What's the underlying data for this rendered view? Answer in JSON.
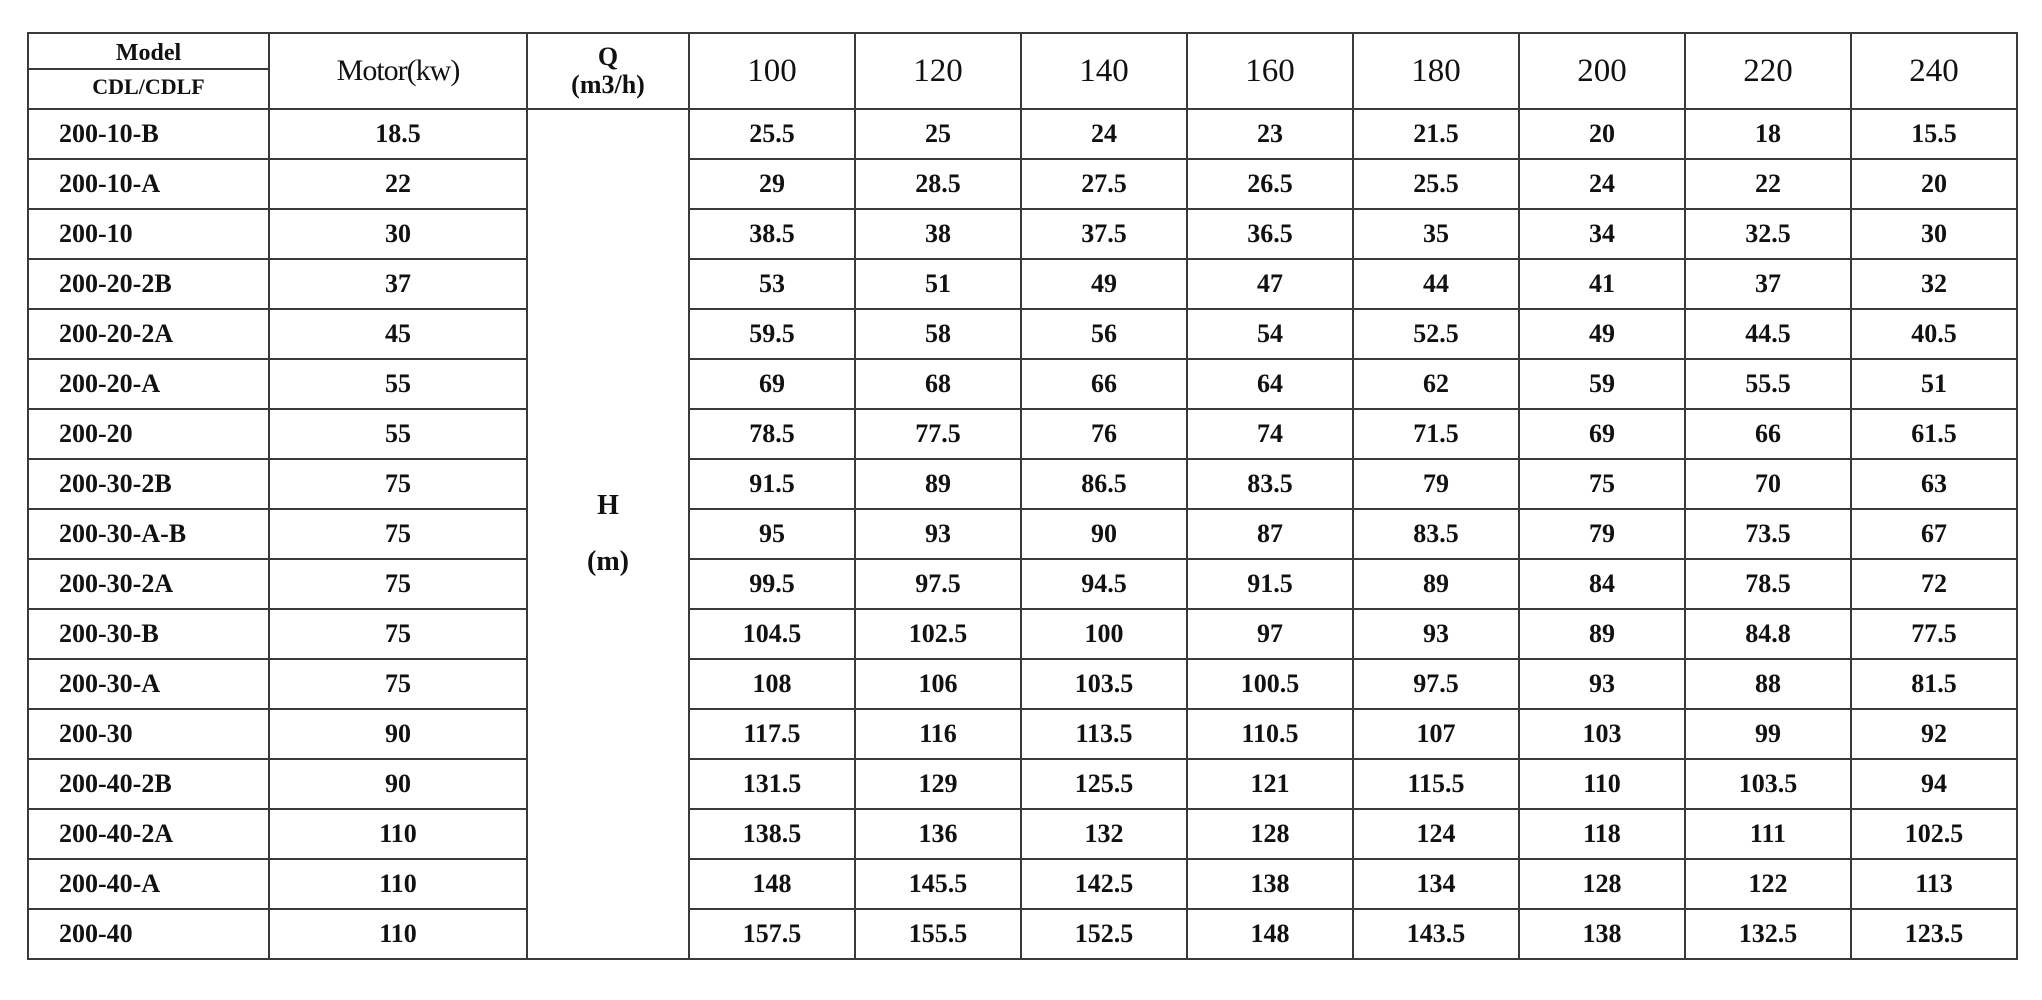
{
  "header": {
    "model_label": "Model",
    "model_sub_label": "CDL/CDLF",
    "motor_label": "Motor(kw)",
    "q_label": "Q",
    "q_unit": "(m3/h)",
    "h_label": "H",
    "h_unit": "(m)",
    "flows": [
      "100",
      "120",
      "140",
      "160",
      "180",
      "200",
      "220",
      "240"
    ]
  },
  "rows": [
    {
      "model": "200-10-B",
      "motor": "18.5",
      "h": [
        "25.5",
        "25",
        "24",
        "23",
        "21.5",
        "20",
        "18",
        "15.5"
      ]
    },
    {
      "model": "200-10-A",
      "motor": "22",
      "h": [
        "29",
        "28.5",
        "27.5",
        "26.5",
        "25.5",
        "24",
        "22",
        "20"
      ]
    },
    {
      "model": "200-10",
      "motor": "30",
      "h": [
        "38.5",
        "38",
        "37.5",
        "36.5",
        "35",
        "34",
        "32.5",
        "30"
      ]
    },
    {
      "model": "200-20-2B",
      "motor": "37",
      "h": [
        "53",
        "51",
        "49",
        "47",
        "44",
        "41",
        "37",
        "32"
      ]
    },
    {
      "model": "200-20-2A",
      "motor": "45",
      "h": [
        "59.5",
        "58",
        "56",
        "54",
        "52.5",
        "49",
        "44.5",
        "40.5"
      ]
    },
    {
      "model": "200-20-A",
      "motor": "55",
      "h": [
        "69",
        "68",
        "66",
        "64",
        "62",
        "59",
        "55.5",
        "51"
      ]
    },
    {
      "model": "200-20",
      "motor": "55",
      "h": [
        "78.5",
        "77.5",
        "76",
        "74",
        "71.5",
        "69",
        "66",
        "61.5"
      ]
    },
    {
      "model": "200-30-2B",
      "motor": "75",
      "h": [
        "91.5",
        "89",
        "86.5",
        "83.5",
        "79",
        "75",
        "70",
        "63"
      ]
    },
    {
      "model": "200-30-A-B",
      "motor": "75",
      "h": [
        "95",
        "93",
        "90",
        "87",
        "83.5",
        "79",
        "73.5",
        "67"
      ]
    },
    {
      "model": "200-30-2A",
      "motor": "75",
      "h": [
        "99.5",
        "97.5",
        "94.5",
        "91.5",
        "89",
        "84",
        "78.5",
        "72"
      ]
    },
    {
      "model": "200-30-B",
      "motor": "75",
      "h": [
        "104.5",
        "102.5",
        "100",
        "97",
        "93",
        "89",
        "84.8",
        "77.5"
      ]
    },
    {
      "model": "200-30-A",
      "motor": "75",
      "h": [
        "108",
        "106",
        "103.5",
        "100.5",
        "97.5",
        "93",
        "88",
        "81.5"
      ]
    },
    {
      "model": "200-30",
      "motor": "90",
      "h": [
        "117.5",
        "116",
        "113.5",
        "110.5",
        "107",
        "103",
        "99",
        "92"
      ]
    },
    {
      "model": "200-40-2B",
      "motor": "90",
      "h": [
        "131.5",
        "129",
        "125.5",
        "121",
        "115.5",
        "110",
        "103.5",
        "94"
      ]
    },
    {
      "model": "200-40-2A",
      "motor": "110",
      "h": [
        "138.5",
        "136",
        "132",
        "128",
        "124",
        "118",
        "111",
        "102.5"
      ]
    },
    {
      "model": "200-40-A",
      "motor": "110",
      "h": [
        "148",
        "145.5",
        "142.5",
        "138",
        "134",
        "128",
        "122",
        "113"
      ]
    },
    {
      "model": "200-40",
      "motor": "110",
      "h": [
        "157.5",
        "155.5",
        "152.5",
        "148",
        "143.5",
        "138",
        "132.5",
        "123.5"
      ]
    }
  ]
}
